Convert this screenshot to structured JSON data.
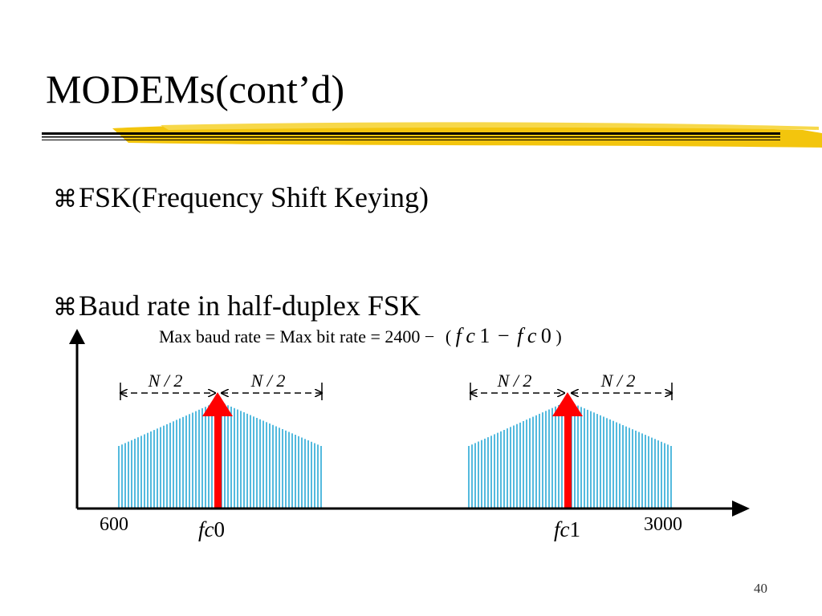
{
  "slide": {
    "title": "MODEMs(cont’d)",
    "bullets": [
      {
        "icon": "command-key-icon",
        "text": "FSK(Frequency Shift Keying)"
      },
      {
        "icon": "command-key-icon",
        "text": "Baud rate in half-duplex FSK"
      }
    ],
    "page_number": "40",
    "accent_color": "#F2C200"
  },
  "diagram": {
    "formula": {
      "prefix": "Max baud rate = Max bit rate = 2400 −",
      "f": "f",
      "c": "c",
      "one": "1",
      "zero": "0",
      "minus": "−",
      "open": "(",
      "close": ")"
    },
    "axis": {
      "left_label": "600",
      "right_label": "3000",
      "marker_left": {
        "f": "f",
        "c": "c",
        "n": "0"
      },
      "marker_right": {
        "f": "f",
        "c": "c",
        "n": "1"
      }
    },
    "half_band_label": "N / 2",
    "band_color": "#29A9D6",
    "carrier_color": "#FF0000"
  }
}
